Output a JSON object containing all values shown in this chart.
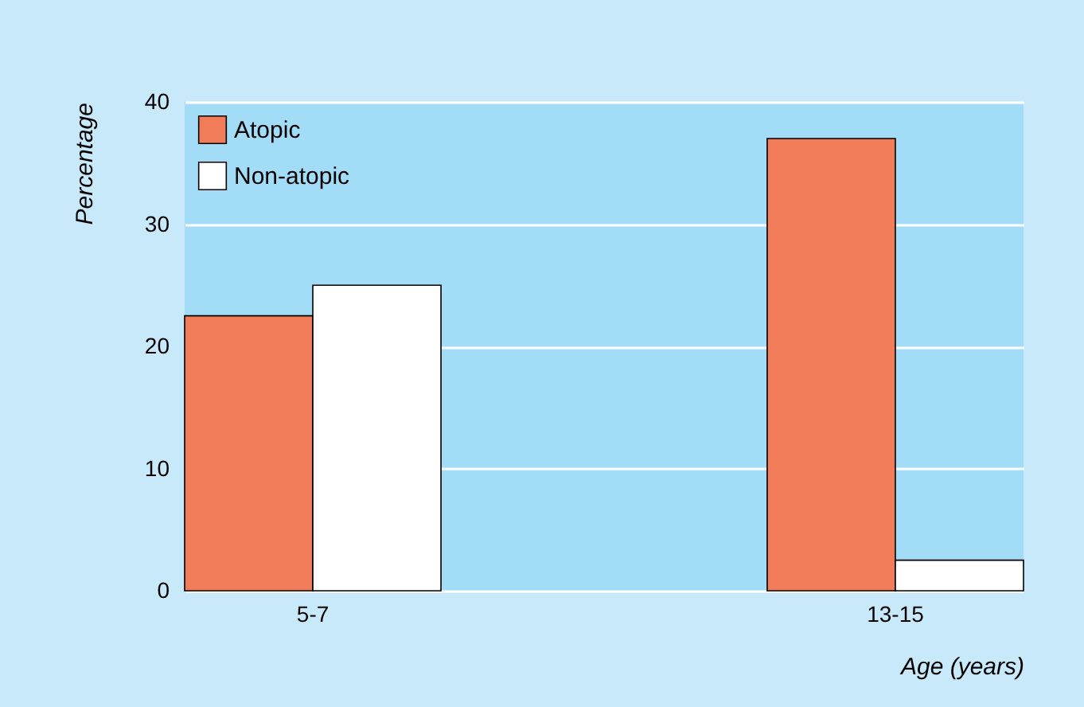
{
  "chart_data": {
    "type": "bar",
    "xlabel": "Age (years)",
    "ylabel": "Percentage",
    "categories": [
      "5-7",
      "13-15"
    ],
    "series": [
      {
        "name": "Atopic",
        "color": "#f07c5a",
        "values": [
          22.5,
          37
        ]
      },
      {
        "name": "Non-atopic",
        "color": "#ffffff",
        "values": [
          25,
          2.5
        ]
      }
    ],
    "ylim": [
      0,
      40
    ],
    "yticks": [
      0,
      10,
      20,
      30,
      40
    ],
    "grid": "y",
    "legend": "top left"
  }
}
